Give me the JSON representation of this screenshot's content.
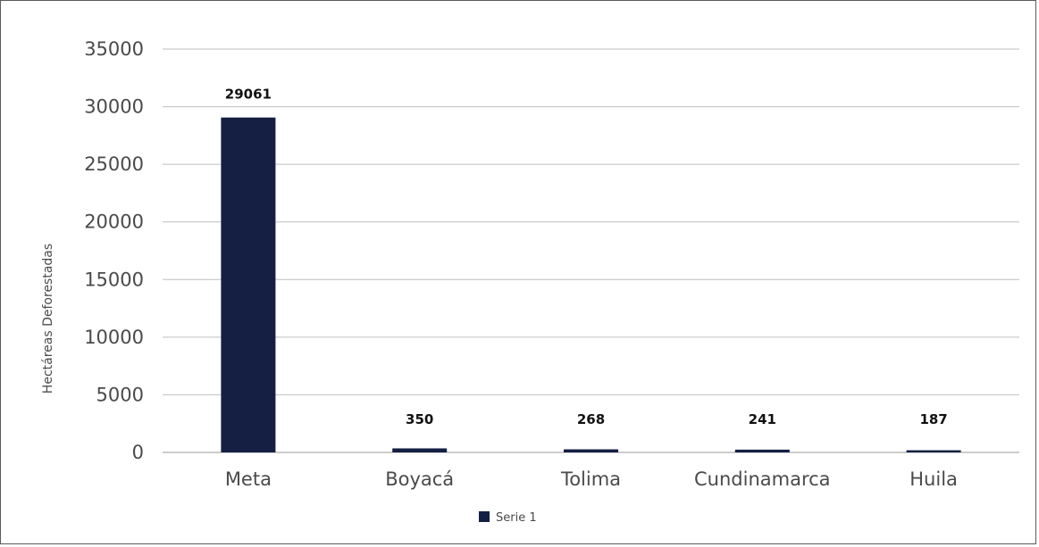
{
  "chart_data": {
    "type": "bar",
    "categories": [
      "Meta",
      "Boyacá",
      "Tolima",
      "Cundinamarca",
      "Huila"
    ],
    "series": [
      {
        "name": "Serie 1",
        "values": [
          29061,
          350,
          268,
          241,
          187
        ],
        "color": "#141f43"
      }
    ],
    "data_labels": [
      "29061",
      "350",
      "268",
      "241",
      "187"
    ],
    "title": "",
    "xlabel": "",
    "ylabel": "Hectáreas Deforestadas",
    "ylim": [
      0,
      35000
    ],
    "yticks": [
      0,
      5000,
      10000,
      15000,
      20000,
      25000,
      30000,
      35000
    ],
    "ytick_labels": [
      "0",
      "5000",
      "10000",
      "15000",
      "20000",
      "25000",
      "30000",
      "35000"
    ],
    "grid": true,
    "legend_position": "bottom",
    "gridline_color": "#bfbfbf"
  }
}
